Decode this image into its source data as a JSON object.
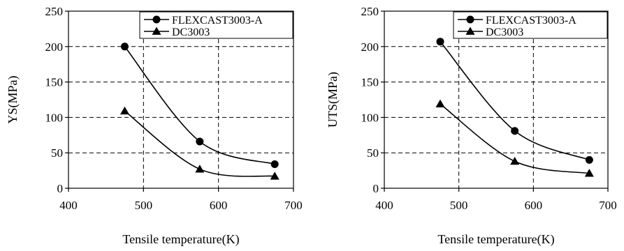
{
  "chart_data": [
    {
      "type": "line",
      "xlabel": "Tensile temperature(K)",
      "ylabel": "YS(MPa)",
      "xlim": [
        400,
        700
      ],
      "ylim": [
        0,
        250
      ],
      "xticks": [
        "400",
        "500",
        "600",
        "700"
      ],
      "yticks": [
        "0",
        "50",
        "100",
        "150",
        "200",
        "250"
      ],
      "grid": true,
      "legend_position": "top-right",
      "series": [
        {
          "name": "FLEXCAST3003-A",
          "marker": "circle",
          "x": [
            475,
            575,
            675
          ],
          "y": [
            200,
            66,
            34
          ]
        },
        {
          "name": "DC3003",
          "marker": "triangle",
          "x": [
            475,
            575,
            675
          ],
          "y": [
            109,
            27,
            17
          ]
        }
      ]
    },
    {
      "type": "line",
      "xlabel": "Tensile temperature(K)",
      "ylabel": "UTS(MPa)",
      "xlim": [
        400,
        700
      ],
      "ylim": [
        0,
        250
      ],
      "xticks": [
        "400",
        "500",
        "600",
        "700"
      ],
      "yticks": [
        "0",
        "50",
        "100",
        "150",
        "200",
        "250"
      ],
      "grid": true,
      "legend_position": "top-right",
      "series": [
        {
          "name": "FLEXCAST3003-A",
          "marker": "circle",
          "x": [
            475,
            575,
            675
          ],
          "y": [
            207,
            81,
            40
          ]
        },
        {
          "name": "DC3003",
          "marker": "triangle",
          "x": [
            475,
            575,
            675
          ],
          "y": [
            119,
            38,
            21
          ]
        }
      ]
    }
  ]
}
